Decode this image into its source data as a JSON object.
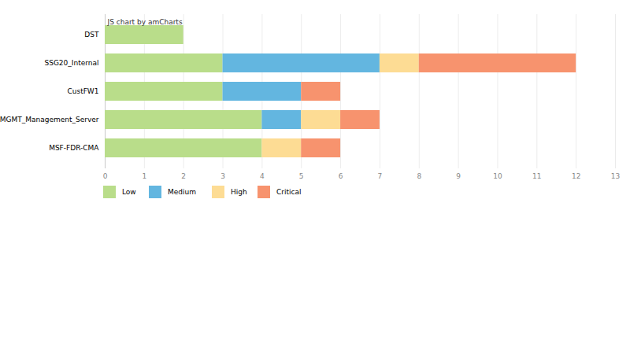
{
  "chart_data": {
    "type": "bar",
    "orientation": "horizontal",
    "stacked": true,
    "categories": [
      "DST",
      "SSG20_Internal",
      "CustFW1",
      "DD-MGMT_Management_Server",
      "MSF-FDR-CMA"
    ],
    "series": [
      {
        "name": "Low",
        "color": "#b9dd8a",
        "values": [
          2,
          3,
          3,
          4,
          4
        ]
      },
      {
        "name": "Medium",
        "color": "#63b6e0",
        "values": [
          0,
          4,
          2,
          1,
          0
        ]
      },
      {
        "name": "High",
        "color": "#fddc94",
        "values": [
          0,
          1,
          0,
          1,
          1
        ]
      },
      {
        "name": "Critical",
        "color": "#f7936e",
        "values": [
          0,
          4,
          1,
          1,
          1
        ]
      }
    ],
    "xlim": [
      0,
      13
    ],
    "xticks": [
      0,
      1,
      2,
      3,
      4,
      5,
      6,
      7,
      8,
      9,
      10,
      11,
      12,
      13
    ],
    "grid": true,
    "legend": "bottom",
    "annotations": [
      "JS chart by amCharts"
    ]
  }
}
